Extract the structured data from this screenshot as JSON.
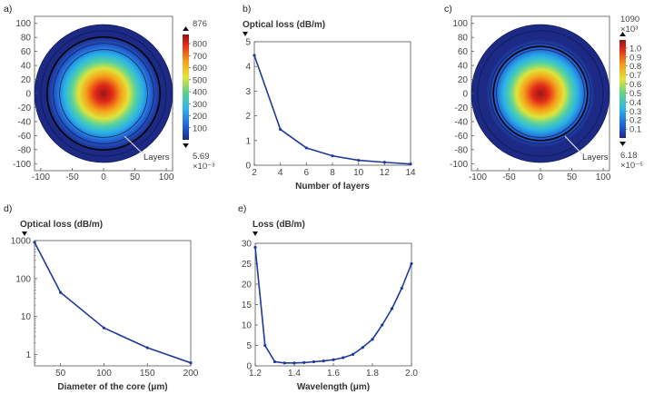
{
  "panels": {
    "a": {
      "tag": "a)",
      "kind": "heatmap",
      "x_ticks": [
        "-100",
        "-50",
        "0",
        "50",
        "100"
      ],
      "y_ticks": [
        "100",
        "80",
        "60",
        "40",
        "20",
        "0",
        "-20",
        "-40",
        "-60",
        "-80",
        "-100"
      ],
      "xlim": [
        -110,
        110
      ],
      "ylim": [
        -110,
        110
      ],
      "rings": [
        110,
        100,
        90,
        80,
        70
      ],
      "bold_ring": 90,
      "field_sigma": 38,
      "annotation": "Layers",
      "colorbar": {
        "max": "876",
        "ticks": [
          "800",
          "700",
          "600",
          "500",
          "400",
          "300",
          "200",
          "100"
        ],
        "tick_values": [
          800,
          700,
          600,
          500,
          400,
          300,
          200,
          100
        ],
        "range": [
          0,
          876
        ],
        "min_value": "5.69",
        "min_exp": "×10⁻³"
      }
    },
    "b": {
      "tag": "b)",
      "ylabel": "Optical loss (dB/m)",
      "xlabel": "Number of layers",
      "x_ticks": [
        "2",
        "4",
        "6",
        "8",
        "10",
        "12",
        "14"
      ],
      "y_ticks": [
        "5",
        "4",
        "3",
        "2",
        "1",
        "0"
      ]
    },
    "c": {
      "tag": "c)",
      "kind": "heatmap",
      "x_ticks": [
        "-100",
        "-50",
        "0",
        "50",
        "100"
      ],
      "y_ticks": [
        "100",
        "80",
        "60",
        "40",
        "20",
        "0",
        "-20",
        "-40",
        "-60",
        "-80",
        "-100"
      ],
      "xlim": [
        -110,
        110
      ],
      "ylim": [
        -110,
        110
      ],
      "rings": [
        110,
        100,
        80,
        70
      ],
      "bold_ring": 75,
      "field_sigma": 36,
      "annotation": "Layers",
      "colorbar": {
        "max": "1090",
        "max_exp": "×10³",
        "ticks": [
          "1.0",
          "0.9",
          "0.8",
          "0.7",
          "0.6",
          "0.5",
          "0.4",
          "0.3",
          "0.2",
          "0.1"
        ],
        "tick_values": [
          1.0,
          0.9,
          0.8,
          0.7,
          0.6,
          0.5,
          0.4,
          0.3,
          0.2,
          0.1
        ],
        "range": [
          0,
          1.09
        ],
        "min_value": "6.18",
        "min_exp": "×10⁻⁵"
      }
    },
    "d": {
      "tag": "d)",
      "ylabel": "Optical loss (dB/m)",
      "xlabel": "Diameter of the core (μm)",
      "x_ticks": [
        "50",
        "100",
        "150",
        "200"
      ],
      "y_ticks": [
        "1000",
        "100",
        "10",
        "1"
      ]
    },
    "e": {
      "tag": "e)",
      "ylabel": "Loss (dB/m)",
      "xlabel": "Wavelength (μm)",
      "x_ticks": [
        "1.2",
        "1.4",
        "1.6",
        "1.8",
        "2.0"
      ],
      "y_ticks": [
        "30",
        "25",
        "20",
        "15",
        "10",
        "5",
        "0"
      ]
    }
  },
  "chart_data": [
    {
      "type": "line",
      "panel": "b",
      "xlabel": "Number of layers",
      "ylabel": "Optical loss (dB/m)",
      "x": [
        2,
        4,
        6,
        8,
        10,
        12,
        14
      ],
      "y": [
        4.45,
        1.45,
        0.7,
        0.38,
        0.2,
        0.12,
        0.05
      ],
      "xlim": [
        2,
        14
      ],
      "ylim": [
        0,
        5
      ],
      "grid": false,
      "color": "#1f3a9a"
    },
    {
      "type": "line",
      "panel": "d",
      "xlabel": "Diameter of the core (μm)",
      "ylabel": "Optical loss (dB/m)",
      "x": [
        20,
        50,
        100,
        150,
        200
      ],
      "y": [
        900,
        43,
        5,
        1.5,
        0.6
      ],
      "xlim": [
        20,
        200
      ],
      "ylim": [
        0.5,
        1000
      ],
      "yscale": "log",
      "grid": false,
      "color": "#1f3a9a"
    },
    {
      "type": "line",
      "panel": "e",
      "xlabel": "Wavelength (μm)",
      "ylabel": "Loss (dB/m)",
      "x": [
        1.2,
        1.25,
        1.3,
        1.35,
        1.4,
        1.45,
        1.5,
        1.55,
        1.6,
        1.65,
        1.7,
        1.75,
        1.8,
        1.85,
        1.9,
        1.95,
        2.0
      ],
      "y": [
        29,
        5,
        1,
        0.7,
        0.7,
        0.8,
        1.0,
        1.2,
        1.5,
        2.0,
        2.8,
        4.5,
        6.5,
        10,
        14,
        19,
        25
      ],
      "xlim": [
        1.2,
        2.0
      ],
      "ylim": [
        0,
        30
      ],
      "grid": false,
      "color": "#1f3a9a"
    }
  ]
}
